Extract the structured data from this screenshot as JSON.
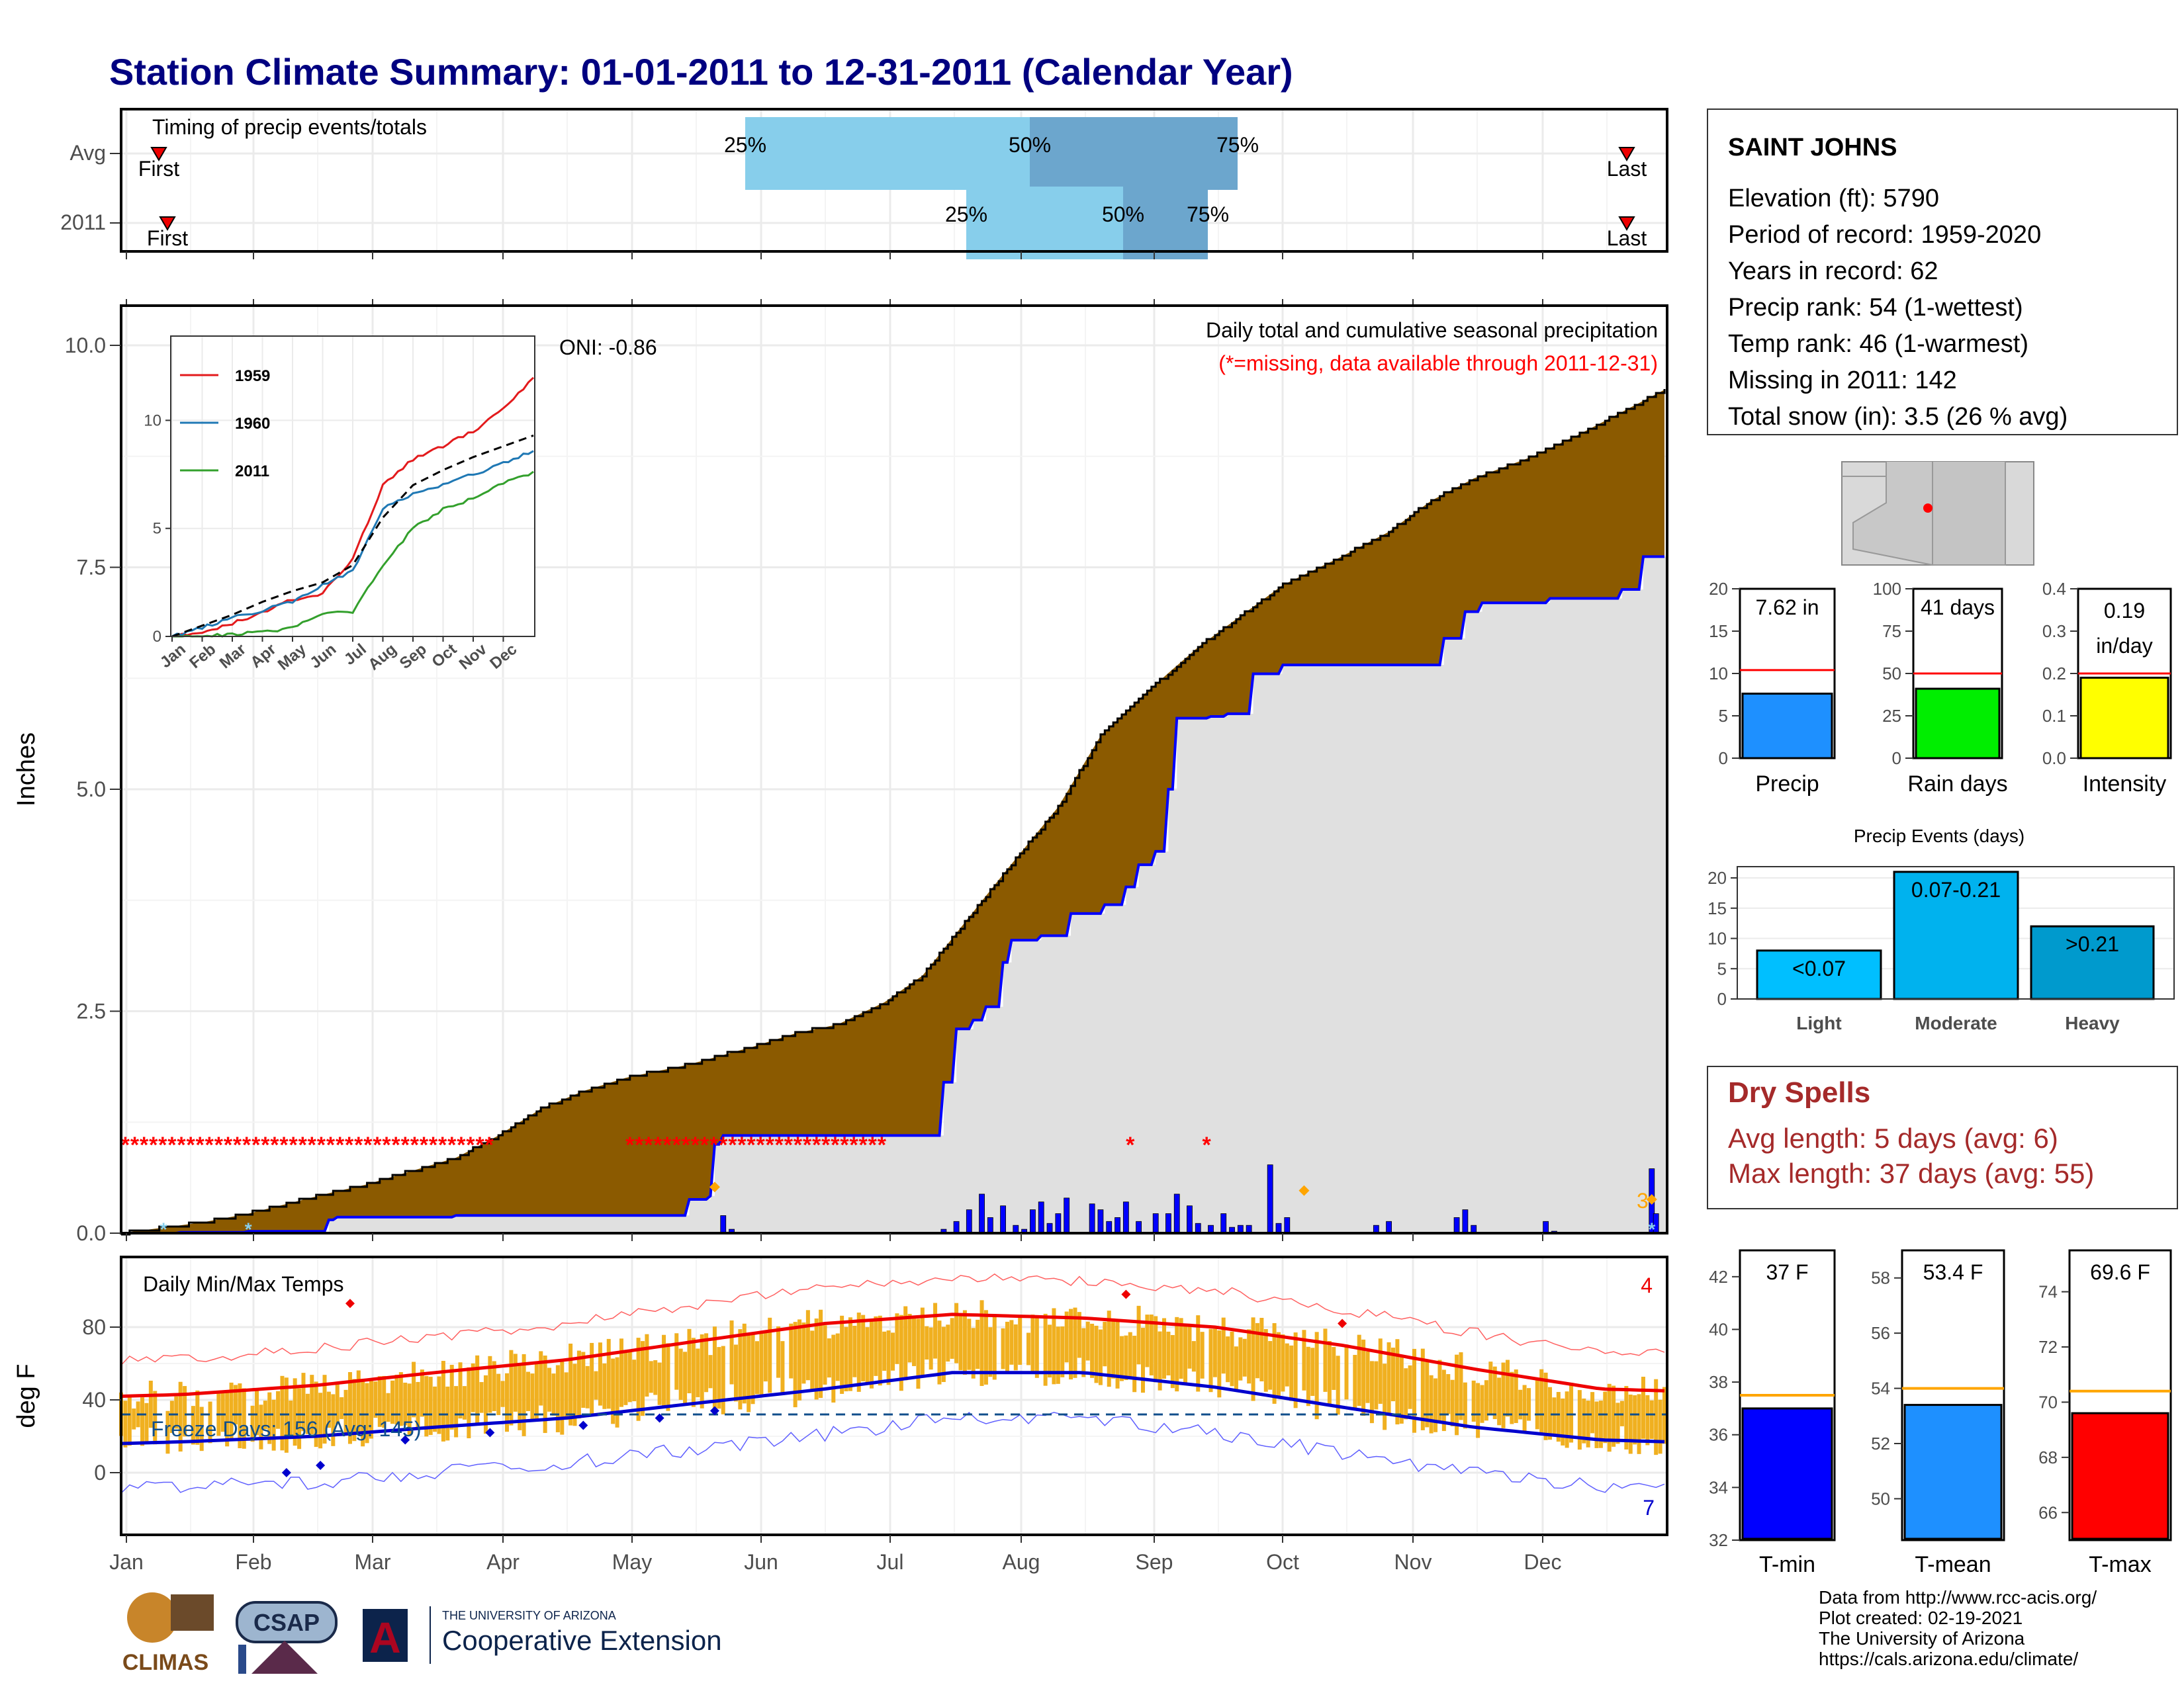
{
  "page": {
    "title": "Station Climate Summary: 01-01-2011 to 12-31-2011 (Calendar Year)"
  },
  "timing_panel": {
    "title": "Timing of precip events/totals",
    "row_labels": [
      "Avg",
      "2011"
    ],
    "first_label": "First",
    "last_label": "Last",
    "pct_labels": [
      "25%",
      "50%",
      "75%"
    ]
  },
  "precip_panel": {
    "y_label": "Inches",
    "y_ticks": [
      "0.0",
      "2.5",
      "5.0",
      "7.5",
      "10.0"
    ],
    "caption": "Daily total and cumulative seasonal precipitation",
    "missing_note": "(*=missing, data available through 2011-12-31)",
    "oni": "ONI: -0.86",
    "end_count": "3"
  },
  "inset": {
    "legend": [
      "1959",
      "1960",
      "2011"
    ],
    "y_ticks": [
      "0",
      "5",
      "10"
    ],
    "x_ticks": [
      "Jan",
      "Feb",
      "Mar",
      "Apr",
      "May",
      "Jun",
      "Jul",
      "Aug",
      "Sep",
      "Oct",
      "Nov",
      "Dec"
    ]
  },
  "temp_panel": {
    "y_label": "deg F",
    "y_ticks": [
      "0",
      "40",
      "80"
    ],
    "title": "Daily Min/Max Temps",
    "freeze": "Freeze Days: 156 (Avg: 145)",
    "max_count": "4",
    "min_count": "7"
  },
  "months": [
    "Jan",
    "Feb",
    "Mar",
    "Apr",
    "May",
    "Jun",
    "Jul",
    "Aug",
    "Sep",
    "Oct",
    "Nov",
    "Dec"
  ],
  "station": {
    "name": "SAINT JOHNS",
    "lines": [
      "Elevation (ft): 5790",
      "Period of record: 1959-2020",
      "Years in record: 62",
      "Precip rank: 54 (1-wettest)",
      "Temp rank: 46 (1-warmest)",
      "Missing in 2011: 142",
      "Total snow (in): 3.5 (26 % avg)"
    ]
  },
  "mini_bars": [
    {
      "label": "Precip",
      "value_text": "7.62 in",
      "value": 7.62,
      "avg": 10.4,
      "ymax": 20,
      "ticks": [
        "0",
        "5",
        "10",
        "15",
        "20"
      ],
      "tick_vals": [
        0,
        5,
        10,
        15,
        20
      ],
      "color": "#1e90ff"
    },
    {
      "label": "Rain days",
      "value_text": "41 days",
      "value": 41,
      "avg": 50,
      "ymax": 100,
      "ticks": [
        "0",
        "25",
        "50",
        "75",
        "100"
      ],
      "tick_vals": [
        0,
        25,
        50,
        75,
        100
      ],
      "color": "#00ee00"
    },
    {
      "label": "Intensity",
      "value_text": "0.19 in/day",
      "value_line1": "0.19",
      "value_line2": "in/day",
      "value": 0.19,
      "avg": 0.2,
      "ymax": 0.4,
      "ticks": [
        "0.0",
        "0.1",
        "0.2",
        "0.3",
        "0.4"
      ],
      "tick_vals": [
        0,
        0.1,
        0.2,
        0.3,
        0.4
      ],
      "color": "#ffff00"
    }
  ],
  "events": {
    "title": "Precip Events (days)",
    "ticks": [
      "0",
      "5",
      "10",
      "15",
      "20"
    ],
    "bars": [
      {
        "label": "Light",
        "range": "<0.07",
        "value": 8,
        "color": "#00bfff"
      },
      {
        "label": "Moderate",
        "range": "0.07-0.21",
        "value": 21,
        "color": "#00b2ee"
      },
      {
        "label": "Heavy",
        "range": ">0.21",
        "value": 12,
        "color": "#009acd"
      }
    ]
  },
  "dry_spells": {
    "title": "Dry Spells",
    "avg": "Avg length: 5 days (avg: 6)",
    "max": "Max length: 37 days (avg: 55)"
  },
  "temp_bars": [
    {
      "label": "T-min",
      "value_text": "37 F",
      "value": 37.0,
      "avg": 37.5,
      "ymin": 32,
      "ymax": 43,
      "ticks": [
        "32",
        "34",
        "36",
        "38",
        "40",
        "42"
      ],
      "tick_vals": [
        32,
        34,
        36,
        38,
        40,
        42
      ],
      "color": "#0000ff"
    },
    {
      "label": "T-mean",
      "value_text": "53.4 F",
      "value": 53.4,
      "avg": 54.0,
      "ymin": 48.5,
      "ymax": 59,
      "ticks": [
        "50",
        "52",
        "54",
        "56",
        "58"
      ],
      "tick_vals": [
        50,
        52,
        54,
        56,
        58
      ],
      "color": "#1e90ff"
    },
    {
      "label": "T-max",
      "value_text": "69.6 F",
      "value": 69.6,
      "avg": 70.4,
      "ymin": 65,
      "ymax": 75.5,
      "ticks": [
        "66",
        "68",
        "70",
        "72",
        "74"
      ],
      "tick_vals": [
        66,
        68,
        70,
        72,
        74
      ],
      "color": "#ff0000"
    }
  ],
  "footer": {
    "lines": [
      "Data from http://www.rcc-acis.org/",
      "Plot created: 02-19-2021",
      "The University of Arizona",
      "https://cals.arizona.edu/climate/"
    ],
    "logo_climas": "CLIMAS",
    "logo_csap": "CSAP",
    "ua_small": "THE UNIVERSITY OF ARIZONA",
    "ua_big": "Cooperative Extension"
  },
  "chart_data": [
    {
      "type": "bar",
      "title": "Timing of precip events/totals",
      "categories": [
        "Avg",
        "2011"
      ],
      "series": [
        {
          "name": "Avg",
          "values": {
            "first": "Jan 12",
            "p25": "May 26",
            "p50": "Jul 10",
            "p75": "Aug 16",
            "last": "Dec 27"
          }
        },
        {
          "name": "2011",
          "values": {
            "first": "Jan 14",
            "p25": "Jul 24",
            "p50": "Aug 29",
            "p75": "Sep 17",
            "last": "Dec 28"
          }
        }
      ]
    },
    {
      "type": "area",
      "title": "Daily total and cumulative seasonal precipitation",
      "ylabel": "Inches",
      "ylim": [
        0,
        10.5
      ],
      "x": [
        "Jan",
        "Feb",
        "Mar",
        "Apr",
        "May",
        "Jun",
        "Jul",
        "Aug",
        "Sep",
        "Oct",
        "Nov",
        "Dec"
      ],
      "avg_cumulative": [
        [
          1,
          0.0
        ],
        [
          20,
          0.12
        ],
        [
          31,
          0.22
        ],
        [
          50,
          0.45
        ],
        [
          59,
          0.55
        ],
        [
          80,
          0.85
        ],
        [
          90,
          1.1
        ],
        [
          100,
          1.4
        ],
        [
          110,
          1.6
        ],
        [
          120,
          1.75
        ],
        [
          135,
          1.9
        ],
        [
          150,
          2.1
        ],
        [
          160,
          2.25
        ],
        [
          170,
          2.35
        ],
        [
          181,
          2.6
        ],
        [
          190,
          2.9
        ],
        [
          200,
          3.5
        ],
        [
          210,
          4.1
        ],
        [
          222,
          4.8
        ],
        [
          232,
          5.6
        ],
        [
          243,
          6.1
        ],
        [
          255,
          6.6
        ],
        [
          265,
          6.95
        ],
        [
          275,
          7.3
        ],
        [
          288,
          7.6
        ],
        [
          300,
          7.9
        ],
        [
          310,
          8.25
        ],
        [
          320,
          8.5
        ],
        [
          334,
          8.75
        ],
        [
          345,
          9.0
        ],
        [
          355,
          9.25
        ],
        [
          365,
          9.5
        ]
      ],
      "cumulative_2011": [
        [
          1,
          0.0
        ],
        [
          15,
          0.01
        ],
        [
          31,
          0.02
        ],
        [
          50,
          0.15
        ],
        [
          52,
          0.18
        ],
        [
          80,
          0.2
        ],
        [
          135,
          0.38
        ],
        [
          140,
          0.42
        ],
        [
          141,
          1.0
        ],
        [
          143,
          1.1
        ],
        [
          190,
          1.1
        ],
        [
          195,
          1.7
        ],
        [
          198,
          2.3
        ],
        [
          202,
          2.4
        ],
        [
          205,
          2.55
        ],
        [
          209,
          3.05
        ],
        [
          211,
          3.3
        ],
        [
          218,
          3.35
        ],
        [
          225,
          3.6
        ],
        [
          233,
          3.7
        ],
        [
          238,
          3.9
        ],
        [
          241,
          4.15
        ],
        [
          245,
          4.3
        ],
        [
          248,
          5.0
        ],
        [
          250,
          5.8
        ],
        [
          258,
          5.82
        ],
        [
          262,
          5.85
        ],
        [
          268,
          6.3
        ],
        [
          275,
          6.4
        ],
        [
          288,
          6.4
        ],
        [
          302,
          6.4
        ],
        [
          313,
          6.7
        ],
        [
          318,
          7.0
        ],
        [
          322,
          7.1
        ],
        [
          338,
          7.15
        ],
        [
          355,
          7.25
        ],
        [
          360,
          7.62
        ],
        [
          365,
          7.62
        ]
      ],
      "missing_note": "(*=missing, data available through 2011-12-31)",
      "oni": -0.86
    },
    {
      "type": "line",
      "title": "Inset cumulative precipitation",
      "x": [
        "Jan",
        "Feb",
        "Mar",
        "Apr",
        "May",
        "Jun",
        "Jul",
        "Aug",
        "Sep",
        "Oct",
        "Nov",
        "Dec"
      ],
      "ylim": [
        0,
        12
      ],
      "series": [
        {
          "name": "1959",
          "values": [
            0.2,
            0.6,
            1.1,
            1.7,
            2.0,
            3.6,
            7.0,
            8.2,
            8.8,
            9.5,
            10.5,
            12.0
          ]
        },
        {
          "name": "1960",
          "values": [
            0.4,
            0.9,
            1.2,
            1.6,
            2.4,
            3.0,
            5.9,
            6.6,
            7.0,
            7.5,
            8.0,
            8.6
          ]
        },
        {
          "name": "2011",
          "values": [
            0.0,
            0.1,
            0.2,
            0.4,
            1.1,
            1.1,
            3.3,
            5.0,
            5.9,
            6.4,
            7.1,
            7.6
          ]
        }
      ]
    },
    {
      "type": "line",
      "title": "Daily Min/Max Temps",
      "ylabel": "deg F",
      "x": [
        "Jan",
        "Feb",
        "Mar",
        "Apr",
        "May",
        "Jun",
        "Jul",
        "Aug",
        "Sep",
        "Oct",
        "Nov",
        "Dec"
      ],
      "series": [
        {
          "name": "Avg Tmax",
          "values": [
            43,
            48,
            55,
            62,
            72,
            82,
            87,
            85,
            80,
            70,
            57,
            46
          ]
        },
        {
          "name": "Avg Tmin",
          "values": [
            17,
            20,
            25,
            30,
            38,
            46,
            55,
            55,
            47,
            36,
            25,
            18
          ]
        }
      ],
      "freeze_days": 156,
      "freeze_days_avg": 145
    },
    {
      "type": "bar",
      "title": "Precip Events (days)",
      "categories": [
        "Light",
        "Moderate",
        "Heavy"
      ],
      "values": [
        8,
        21,
        12
      ]
    }
  ]
}
